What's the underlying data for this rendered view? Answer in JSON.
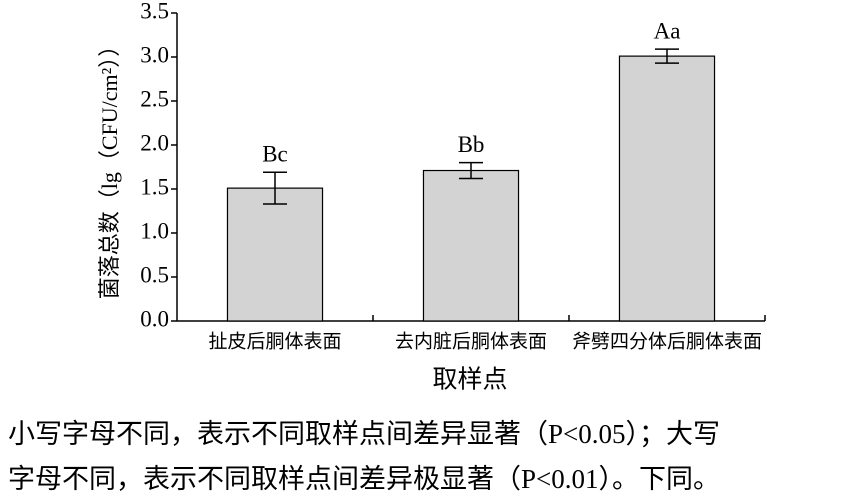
{
  "chart_data": {
    "type": "bar",
    "y_label": "菌落总数（lg（CFU/cm²））",
    "x_label": "取样点",
    "categories": [
      "扯皮后胴体表面",
      "去内脏后胴体表面",
      "斧劈四分体后胴体表面"
    ],
    "values": [
      1.51,
      1.71,
      3.01
    ],
    "errors": [
      0.18,
      0.09,
      0.08
    ],
    "annotations": [
      "Bc",
      "Bb",
      "Aa"
    ],
    "color": "#d3d3d3",
    "ylim": [
      0,
      3.5
    ],
    "yticks": [
      {
        "value": 0,
        "label": "0.0"
      },
      0.5,
      {
        "value": 1,
        "label": "1.0"
      },
      1.5,
      {
        "value": 2,
        "label": "2.0"
      },
      2.5,
      {
        "value": 3,
        "label": "3.0"
      },
      3.5
    ]
  },
  "note": [
    "小写字母不同，表示不同取样点间差异显著（P<0.05）；大写",
    "字母不同，表示不同取样点间差异极显著（P<0.01）。下同。"
  ]
}
